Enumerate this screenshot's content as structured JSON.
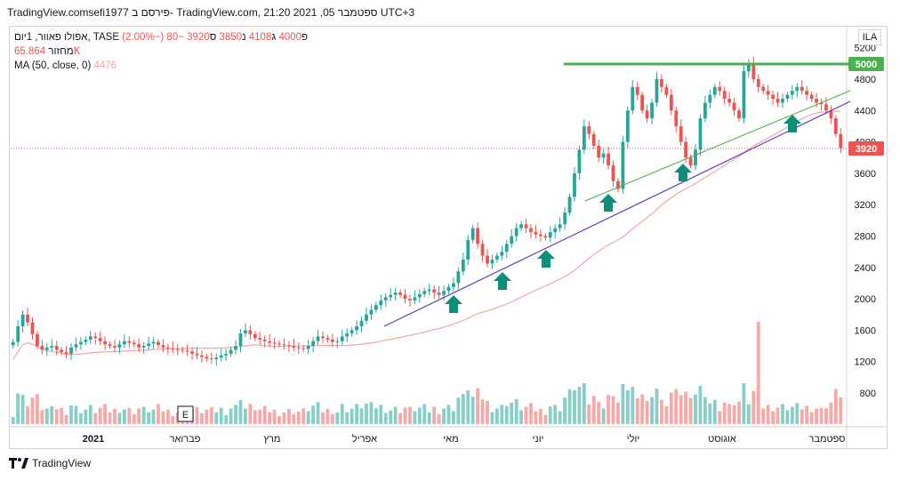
{
  "header": {
    "title": "TradingView.comsefi1977 פירסם ב- TradingView.com, 21:20 2021 ,05 ספטמבר UTC+3"
  },
  "legend": {
    "symbol": "אפולו פאוור, 1יום, TASE",
    "open_label": "פ",
    "open": "4000",
    "high_label": "ג",
    "high": "4108",
    "low_label": "נ",
    "low": "3850",
    "close_label": "ס",
    "close": "3920",
    "change": "−80 (−2.00%)",
    "volume_label": "מחזור",
    "volume": "65.864K",
    "ma_label": "MA (50, close, 0)",
    "ma_value": "4476"
  },
  "scale_button": "ILA",
  "footer": {
    "brand": "TradingView"
  },
  "colors": {
    "up": "#26a69a",
    "down": "#ef5350",
    "ma": "#f4a6a0",
    "support_line": "#5b3fbf",
    "trend_line": "#4caf50",
    "resistance_line": "#4caf50",
    "arrow": "#0f8f7a",
    "last_price_bg": "#ef5350",
    "resistance_bg": "#4caf50"
  },
  "chart_data": {
    "type": "candlestick",
    "price_axis": {
      "ticks": [
        800,
        1200,
        1600,
        2000,
        2400,
        2800,
        3200,
        3600,
        4000,
        4400,
        4800,
        5200
      ],
      "range": [
        400,
        5300
      ]
    },
    "time_axis": {
      "labels": [
        "2021",
        "פברואר",
        "מרץ",
        "אפריל",
        "מאי",
        "יוני",
        "יולי",
        "אוגוסט",
        "ספטמבר"
      ]
    },
    "last_price": 3920,
    "resistance_level": 5000,
    "event_marker": "E",
    "annotations": {
      "arrows": 6
    },
    "series": [
      {
        "name": "price",
        "close": [
          1450,
          1650,
          1800,
          1700,
          1550,
          1400,
          1350,
          1380,
          1400,
          1350,
          1320,
          1300,
          1380,
          1420,
          1450,
          1480,
          1520,
          1500,
          1460,
          1420,
          1400,
          1380,
          1420,
          1460,
          1440,
          1420,
          1380,
          1400,
          1430,
          1450,
          1410,
          1380,
          1370,
          1360,
          1350,
          1340,
          1330,
          1300,
          1280,
          1260,
          1240,
          1230,
          1250,
          1280,
          1300,
          1350,
          1400,
          1560,
          1600,
          1550,
          1500,
          1480,
          1460,
          1440,
          1430,
          1420,
          1410,
          1400,
          1380,
          1370,
          1360,
          1400,
          1460,
          1520,
          1500,
          1480,
          1450,
          1460,
          1520,
          1560,
          1600,
          1650,
          1720,
          1800,
          1860,
          1920,
          1980,
          2020,
          2050,
          2080,
          2050,
          2000,
          1980,
          2020,
          2060,
          2100,
          2120,
          2080,
          2050,
          2100,
          2150,
          2200,
          2350,
          2500,
          2750,
          2900,
          2700,
          2550,
          2450,
          2500,
          2550,
          2600,
          2700,
          2800,
          2900,
          2950,
          2900,
          2850,
          2820,
          2800,
          2780,
          2850,
          2900,
          2950,
          3100,
          3300,
          3600,
          3900,
          4200,
          4100,
          3950,
          3800,
          3850,
          3700,
          3500,
          3400,
          4000,
          4400,
          4700,
          4600,
          4400,
          4300,
          4500,
          4800,
          4700,
          4600,
          4400,
          4200,
          4000,
          3800,
          3700,
          3900,
          4300,
          4500,
          4600,
          4700,
          4650,
          4550,
          4500,
          4400,
          4300,
          4900,
          5000,
          4800,
          4700,
          4650,
          4600,
          4550,
          4500,
          4550,
          4600,
          4650,
          4700,
          4650,
          4600,
          4550,
          4500,
          4480,
          4400,
          4300,
          4100,
          3920
        ]
      },
      {
        "name": "MA (50, close, 0)"
      }
    ]
  }
}
